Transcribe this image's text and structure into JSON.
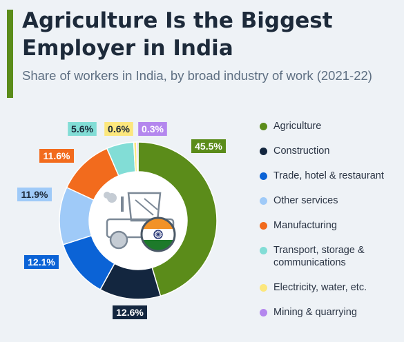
{
  "header": {
    "title": "Agriculture Is the Biggest Employer in India",
    "subtitle": "Share of workers in India, by broad industry of work (2021-22)"
  },
  "colors": {
    "accent": "#5b8c1a",
    "title": "#1d2a3a",
    "subtitle": "#5e6f82",
    "background": "#eef2f6"
  },
  "chart_data": {
    "type": "pie",
    "donut": true,
    "unit": "%",
    "title": "",
    "legend_position": "right",
    "slices": [
      {
        "label": "Agriculture",
        "value": 45.5,
        "display": "45.5%",
        "color": "#5b8c1a",
        "text_color": "#ffffff"
      },
      {
        "label": "Construction",
        "value": 12.6,
        "display": "12.6%",
        "color": "#13263f",
        "text_color": "#ffffff"
      },
      {
        "label": "Trade, hotel & restaurant",
        "value": 12.1,
        "display": "12.1%",
        "color": "#0b63d6",
        "text_color": "#ffffff"
      },
      {
        "label": "Other services",
        "value": 11.9,
        "display": "11.9%",
        "color": "#9fcaf8",
        "text_color": "#1d2a3a"
      },
      {
        "label": "Manufacturing",
        "value": 11.6,
        "display": "11.6%",
        "color": "#f26b1d",
        "text_color": "#ffffff"
      },
      {
        "label": "Transport, storage & communications",
        "value": 5.6,
        "display": "5.6%",
        "color": "#82ddd6",
        "text_color": "#1d2a3a"
      },
      {
        "label": "Electricity, water, etc.",
        "value": 0.6,
        "display": "0.6%",
        "color": "#fce77d",
        "text_color": "#1d2a3a"
      },
      {
        "label": "Mining & quarrying",
        "value": 0.3,
        "display": "0.3%",
        "color": "#b487ee",
        "text_color": "#ffffff"
      }
    ]
  },
  "center_icon": "tractor-with-indian-flag-icon",
  "flag_colors": {
    "saffron": "#f29227",
    "white": "#ffffff",
    "green": "#1d7a2a",
    "chakra": "#1a2a6e"
  }
}
